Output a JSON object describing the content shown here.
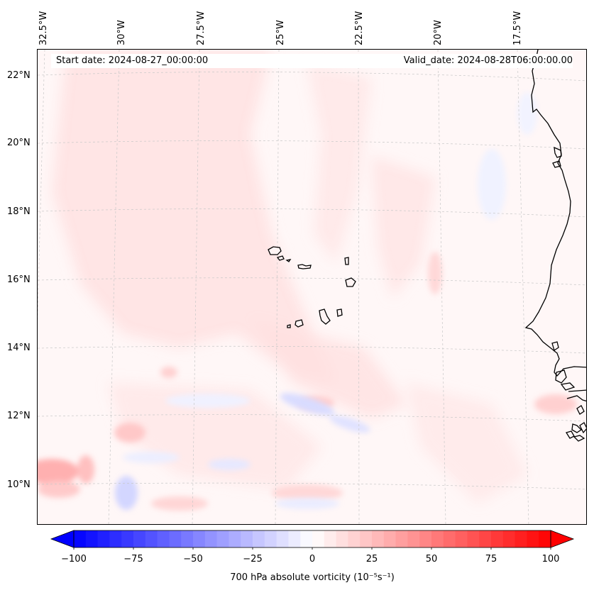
{
  "map": {
    "start_date": "Start date: 2024-08-27_00:00:00",
    "valid_date": "Valid_date: 2024-08-28T06:00:00.00",
    "projection": "lambert-conformal",
    "extent": {
      "lon_min": -33.0,
      "lon_max": -16.0,
      "lat_min": 8.8,
      "lat_max": 22.8
    },
    "lat_labels": [
      "22°N",
      "20°N",
      "18°N",
      "16°N",
      "14°N",
      "12°N",
      "10°N"
    ],
    "lon_labels": [
      "32.5°W",
      "30°W",
      "27.5°W",
      "25°W",
      "22.5°W",
      "20°W",
      "17.5°W"
    ],
    "gridlines": true,
    "field_colors": {
      "weak_positive": "#fff4f4",
      "moderate_positive": "#ffd6d6",
      "strong_positive": "#ffaaaa",
      "weak_negative": "#eef0ff",
      "moderate_negative": "#cfd3ff"
    },
    "coastline_color": "#000000",
    "features": [
      "cape-verde-islands",
      "west-africa-coastline"
    ]
  },
  "colorbar": {
    "label": "700 hPa absolute vorticity (10⁻⁵s⁻¹)",
    "ticks": [
      "−100",
      "−75",
      "−50",
      "−25",
      "0",
      "25",
      "50",
      "75",
      "100"
    ],
    "min": -100,
    "max": 100,
    "step": 5,
    "colormap": "bwr",
    "color_min": "#0000ff",
    "color_mid": "#ffffff",
    "color_max": "#ff0000",
    "extend": "both"
  }
}
